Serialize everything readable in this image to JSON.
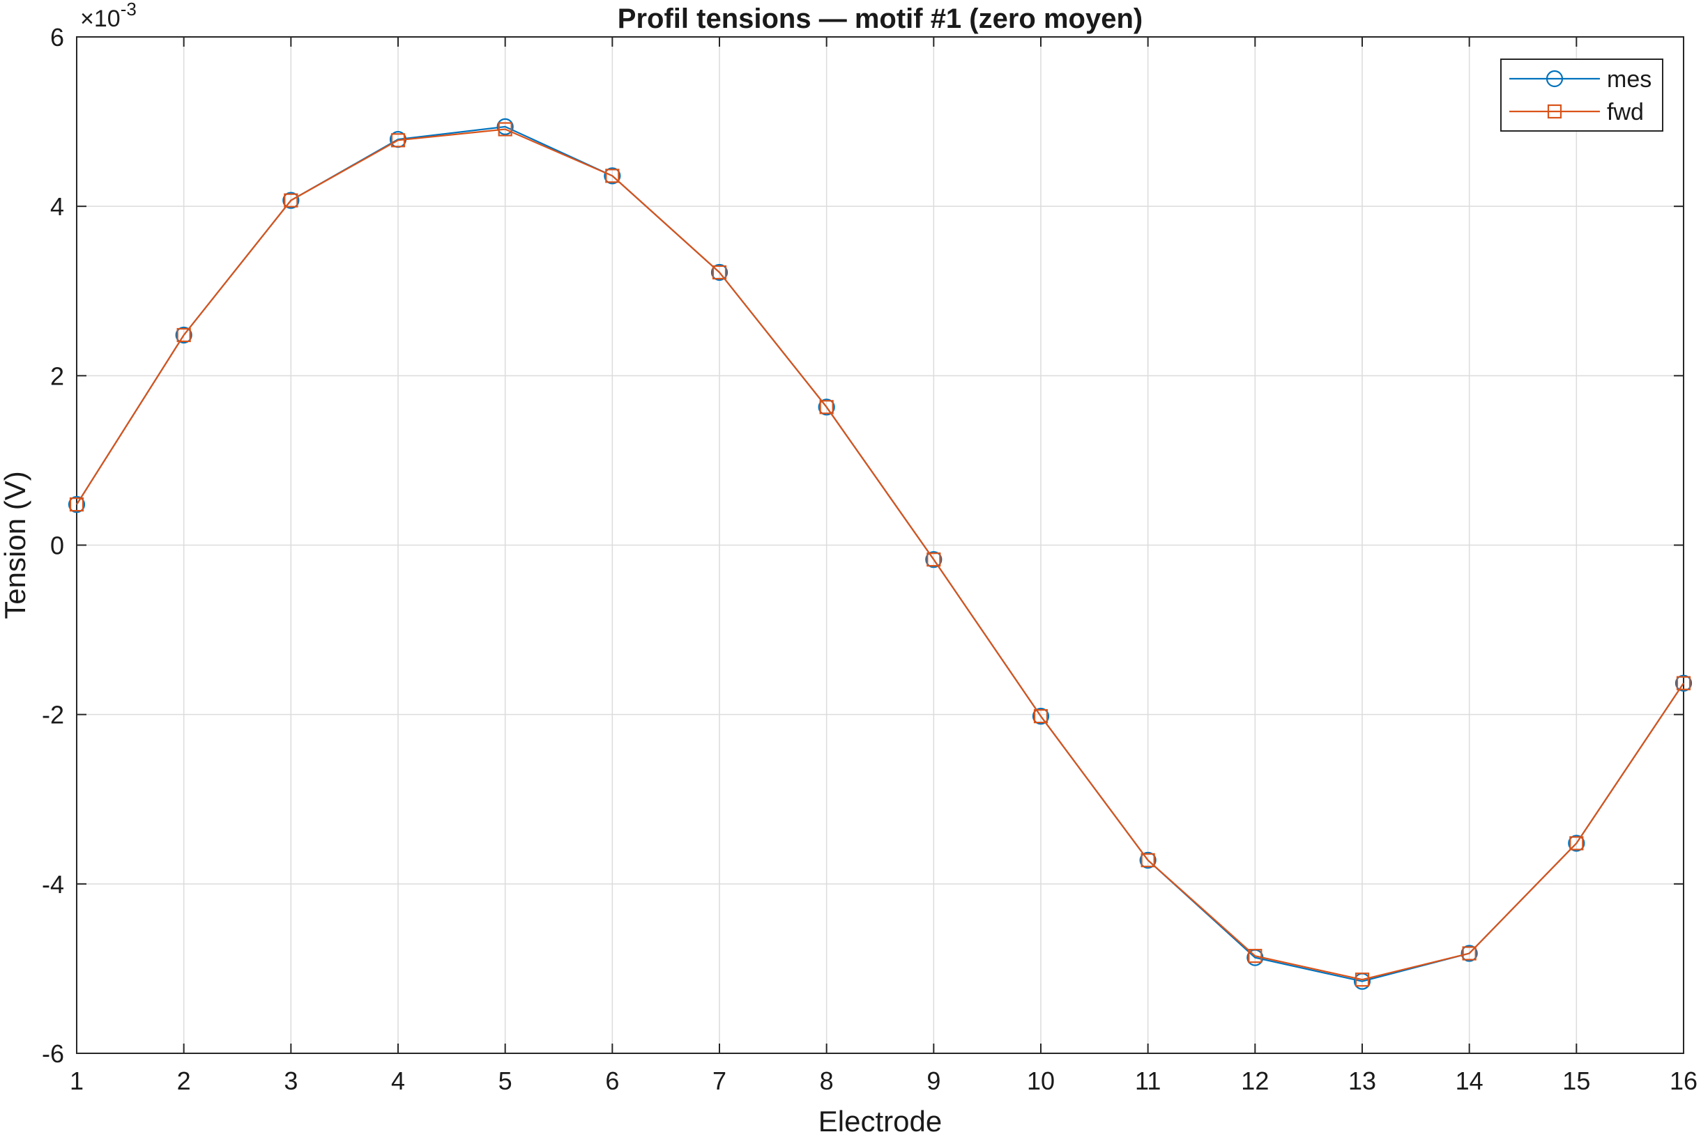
{
  "chart_data": {
    "type": "line",
    "title": "Profil tensions — motif #1 (zero moyen)",
    "xlabel": "Electrode",
    "ylabel": "Tension (V)",
    "xlim": [
      1,
      16
    ],
    "ylim": [
      -6,
      6
    ],
    "y_scale_exponent": "×10-3",
    "x_ticks": [
      "1",
      "2",
      "3",
      "4",
      "5",
      "6",
      "7",
      "8",
      "9",
      "10",
      "11",
      "12",
      "13",
      "14",
      "15",
      "16"
    ],
    "y_ticks": [
      "-6",
      "-4",
      "-2",
      "0",
      "2",
      "4",
      "6"
    ],
    "grid": true,
    "legend_position": "top-right",
    "x": [
      1,
      2,
      3,
      4,
      5,
      6,
      7,
      8,
      9,
      10,
      11,
      12,
      13,
      14,
      15,
      16
    ],
    "series": [
      {
        "name": "mes",
        "marker": "circle",
        "color": "#0072BD",
        "values": [
          0.48,
          2.48,
          4.07,
          4.79,
          4.94,
          4.36,
          3.22,
          1.63,
          -0.17,
          -2.02,
          -3.72,
          -4.87,
          -5.15,
          -4.82,
          -3.52,
          -1.63
        ]
      },
      {
        "name": "fwd",
        "marker": "square",
        "color": "#D95319",
        "values": [
          0.48,
          2.48,
          4.07,
          4.78,
          4.91,
          4.36,
          3.22,
          1.63,
          -0.17,
          -2.02,
          -3.72,
          -4.85,
          -5.13,
          -4.82,
          -3.52,
          -1.63
        ]
      }
    ]
  }
}
